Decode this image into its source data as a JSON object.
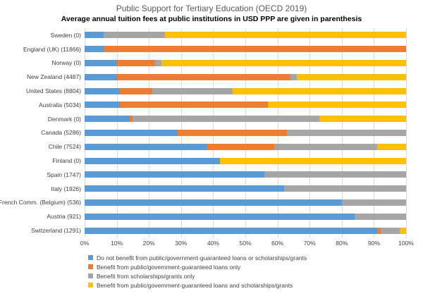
{
  "title": "Public Support for Tertiary Education (OECD 2019)",
  "subtitle": "Average annual tuition fees at public institutions in USD PPP are given in parenthesis",
  "chart_data": {
    "type": "bar",
    "orientation": "horizontal",
    "stacked": true,
    "unit": "percent",
    "title": "Public Support for Tertiary Education (OECD 2019)",
    "subtitle": "Average annual tuition fees at public institutions in USD PPP are given in parenthesis",
    "categories": [
      "Sweden (0)",
      "England (UK) (11866)",
      "Norway (0)",
      "New Zealand (4487)",
      "United States (8804)",
      "Australia (5034)",
      "Denmark (0)",
      "Canada (5286)",
      "Chile (7524)",
      "Finland (0)",
      "Spain (1747)",
      "Italy (1926)",
      "French Comm. (Belgium) (536)",
      "Austria (921)",
      "Switzerland (1291)"
    ],
    "series": [
      {
        "name": "Do not benefit from public/government-guaranteed loans or scholarships/grants",
        "color": "#5B9BD5",
        "values": [
          6,
          6,
          10,
          10,
          11,
          11,
          14,
          29,
          38,
          42,
          56,
          62,
          80,
          84,
          91
        ]
      },
      {
        "name": "Benefit from public/government-guaranteed loans only",
        "color": "#ED7D31",
        "values": [
          0,
          94,
          12,
          54,
          10,
          46,
          1,
          34,
          21,
          0,
          0,
          0,
          0,
          0,
          1
        ]
      },
      {
        "name": "Benefit from scholarships/grants only",
        "color": "#A5A5A5",
        "values": [
          19,
          0,
          2,
          2,
          25,
          0,
          58,
          37,
          32,
          0,
          44,
          38,
          20,
          16,
          6
        ]
      },
      {
        "name": "Benefit from public/government-guaranteed loans and scholarships/grants",
        "color": "#FFC000",
        "values": [
          75,
          0,
          76,
          34,
          54,
          43,
          27,
          0,
          9,
          58,
          0,
          0,
          0,
          0,
          2
        ]
      }
    ],
    "x_axis": {
      "min": 0,
      "max": 100,
      "ticks": [
        "0%",
        "10%",
        "20%",
        "30%",
        "40%",
        "50%",
        "60%",
        "70%",
        "80%",
        "90%",
        "100%"
      ]
    },
    "grid": true,
    "legend_position": "bottom-left"
  }
}
